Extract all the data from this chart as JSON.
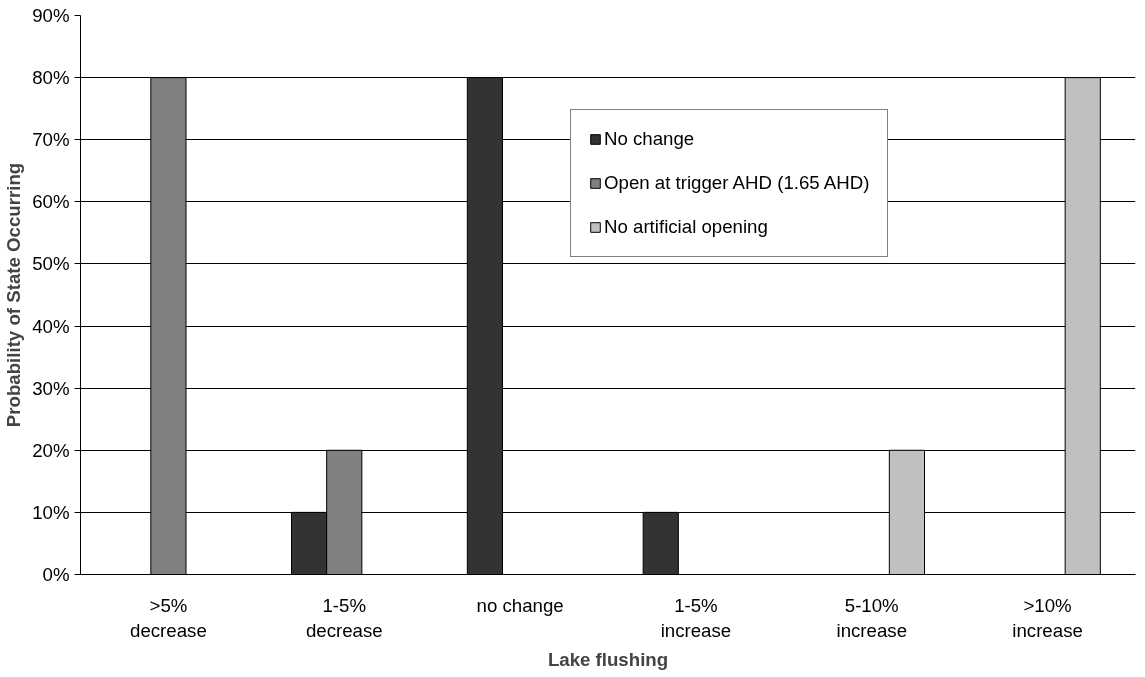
{
  "chart_data": {
    "type": "bar",
    "xlabel": "Lake flushing",
    "ylabel": "Probability of State Occurring",
    "categories": [
      ">5%\ndecrease",
      "1-5%\ndecrease",
      "no change",
      "1-5%\nincrease",
      "5-10%\nincrease",
      ">10%\nincrease"
    ],
    "series": [
      {
        "name": "No change",
        "color": "#333333",
        "values": [
          null,
          10,
          80,
          10,
          null,
          null
        ]
      },
      {
        "name": "Open at trigger AHD (1.65 AHD)",
        "color": "#808080",
        "values": [
          80,
          20,
          null,
          null,
          null,
          null
        ]
      },
      {
        "name": "No artificial opening",
        "color": "#c0c0c0",
        "values": [
          null,
          null,
          null,
          null,
          20,
          80
        ]
      }
    ],
    "ylim": [
      0,
      90
    ],
    "yticks": [
      {
        "value": 0,
        "label": "0%"
      },
      {
        "value": 10,
        "label": "10%"
      },
      {
        "value": 20,
        "label": "20%"
      },
      {
        "value": 30,
        "label": "30%"
      },
      {
        "value": 40,
        "label": "40%"
      },
      {
        "value": 50,
        "label": "50%"
      },
      {
        "value": 60,
        "label": "60%"
      },
      {
        "value": 70,
        "label": "70%"
      },
      {
        "value": 80,
        "label": "80%"
      },
      {
        "value": 90,
        "label": "90%"
      }
    ],
    "grid": "y",
    "legend": "top right"
  }
}
